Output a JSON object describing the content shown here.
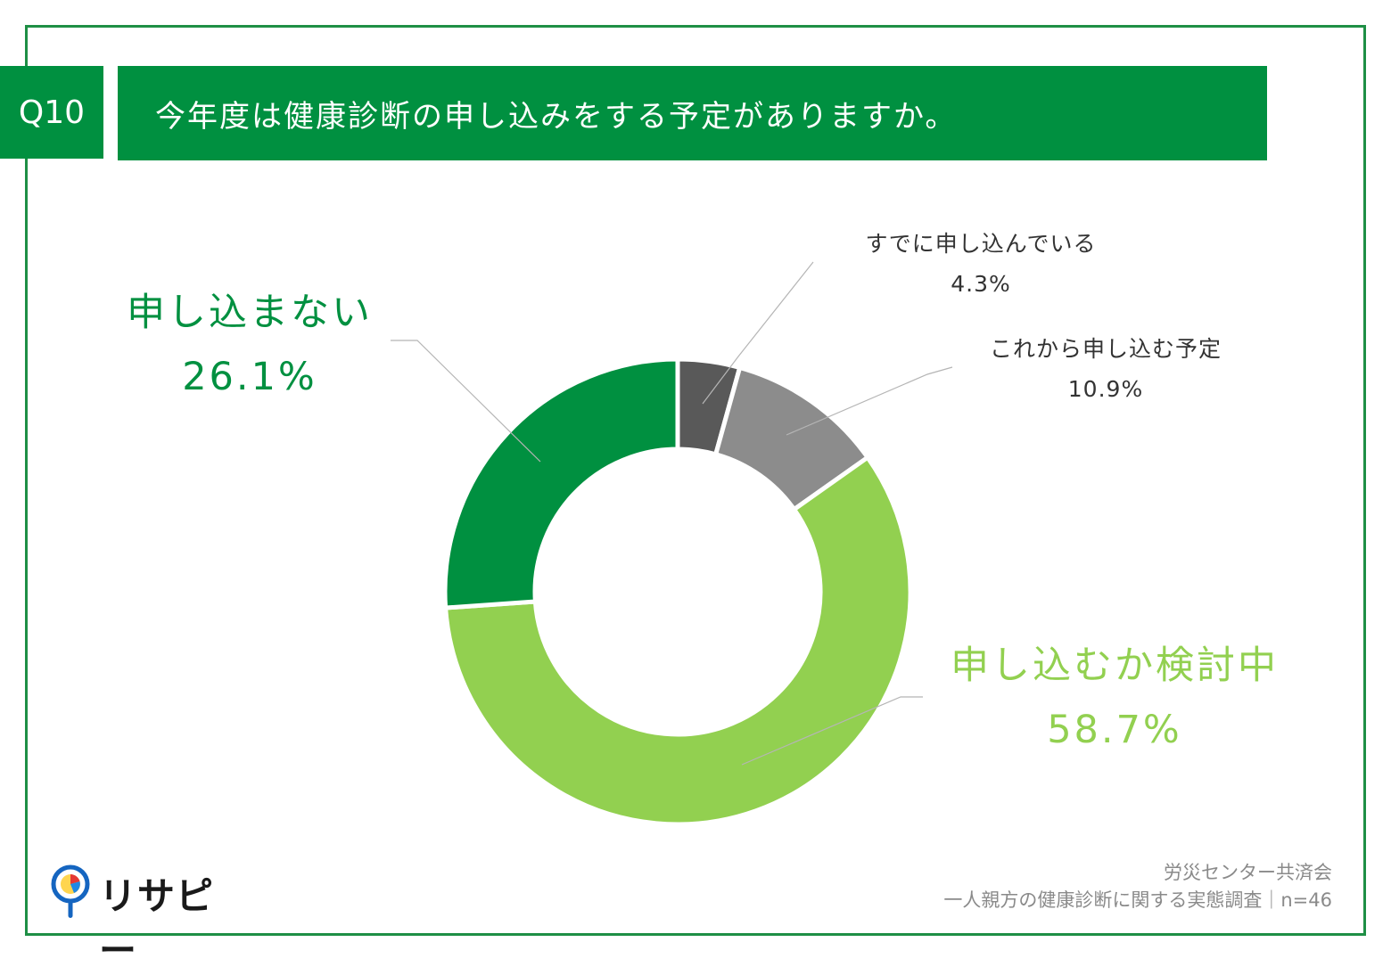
{
  "header": {
    "question_number": "Q10",
    "title": "今年度は健康診断の申し込みをする予定がありますか。"
  },
  "chart_data": {
    "type": "pie",
    "categories": [
      "すでに申し込んでいる",
      "これから申し込む予定",
      "申し込むか検討中",
      "申し込まない"
    ],
    "values": [
      4.3,
      10.9,
      58.7,
      26.1
    ],
    "value_labels": [
      "4.3%",
      "10.9%",
      "58.7%",
      "26.1%"
    ],
    "colors": [
      "#595959",
      "#8c8c8c",
      "#92d050",
      "#009040"
    ],
    "donut": true
  },
  "footer": {
    "brand": "リサピー",
    "source_line1": "労災センター共済会",
    "source_line2": "一人親方の健康診断に関する実態調査｜n=46"
  }
}
